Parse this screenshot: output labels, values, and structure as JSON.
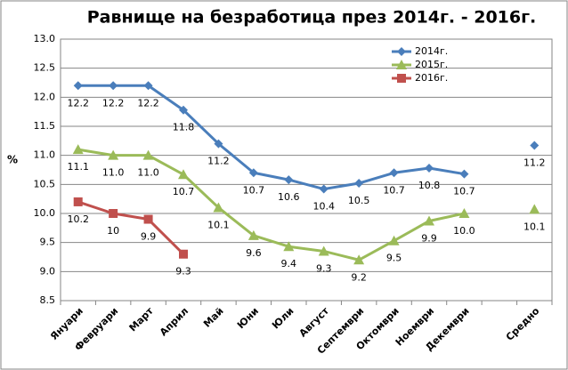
{
  "chart_data": {
    "type": "line",
    "title": "Равнище на безработица през 2014г. - 2016г.",
    "y_label": "%",
    "categories": [
      "Януари",
      "Февруари",
      "Март",
      "Април",
      "Май",
      "Юни",
      "Юли",
      "Август",
      "Септември",
      "Октомври",
      "Ноември",
      "Декември",
      null,
      "Средно"
    ],
    "series": [
      {
        "name": "2014г.",
        "color": "#4a7ebb",
        "marker": "diamond",
        "values": [
          12.2,
          12.2,
          12.2,
          11.78,
          11.2,
          10.7,
          10.58,
          10.42,
          10.52,
          10.7,
          10.78,
          10.68,
          null,
          11.17
        ],
        "value_labels": [
          "12.2",
          "12.2",
          "12.2",
          "11.8",
          "11.2",
          "10.7",
          "10.6",
          "10.4",
          "10.5",
          "10.7",
          "10.8",
          "10.7",
          null,
          "11.2"
        ]
      },
      {
        "name": "2015г.",
        "color": "#9bbb59",
        "marker": "triangle",
        "values": [
          11.1,
          11.0,
          11.0,
          10.67,
          10.1,
          9.62,
          9.43,
          9.35,
          9.2,
          9.53,
          9.87,
          10.0,
          null,
          10.07
        ],
        "value_labels": [
          "11.1",
          "11.0",
          "11.0",
          "10.7",
          "10.1",
          "9.6",
          "9.4",
          "9.3",
          "9.2",
          "9.5",
          "9.9",
          "10.0",
          null,
          "10.1"
        ]
      },
      {
        "name": "2016г.",
        "color": "#c0504d",
        "marker": "square",
        "values": [
          10.2,
          10.0,
          9.9,
          9.3,
          null,
          null,
          null,
          null,
          null,
          null,
          null,
          null,
          null,
          null
        ],
        "value_labels": [
          "10.2",
          "10",
          "9.9",
          "9.3",
          null,
          null,
          null,
          null,
          null,
          null,
          null,
          null,
          null,
          null
        ]
      }
    ],
    "ylim": [
      8.5,
      13.0
    ],
    "yticks": [
      8.5,
      {
        "value": 9.0,
        "label": "9.0"
      },
      9.5,
      {
        "value": 10.0,
        "label": "10.0"
      },
      10.5,
      {
        "value": 11.0,
        "label": "11.0"
      },
      11.5,
      {
        "value": 12.0,
        "label": "12.0"
      },
      12.5,
      {
        "value": 13.0,
        "label": "13.0"
      }
    ],
    "grid": true,
    "legend": "top-right"
  }
}
